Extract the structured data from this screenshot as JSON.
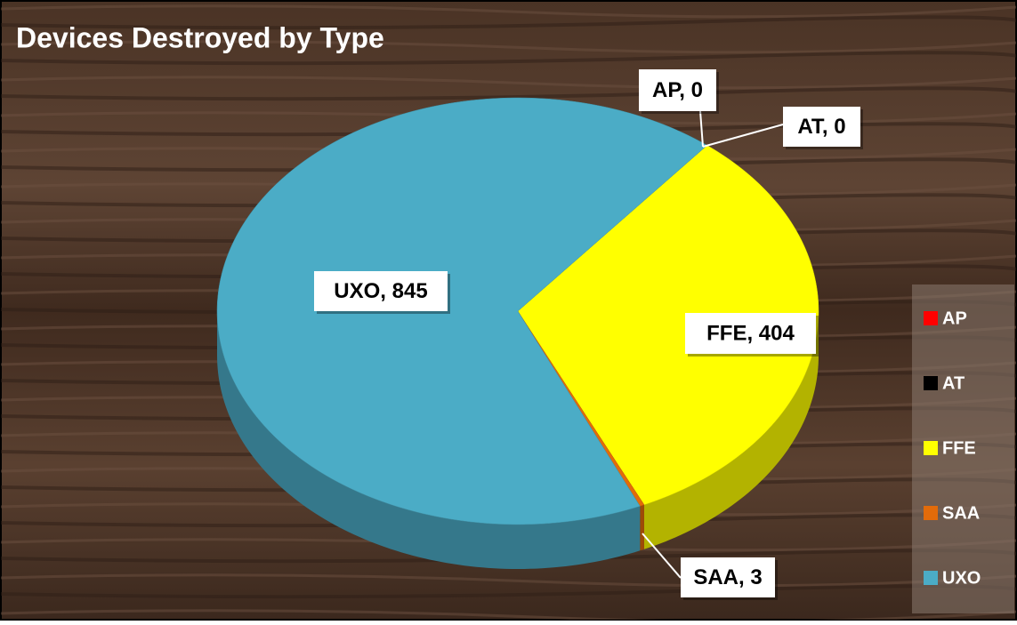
{
  "chart_data": {
    "type": "pie3d",
    "title": "Devices Destroyed by Type",
    "categories": [
      "AP",
      "AT",
      "FFE",
      "SAA",
      "UXO"
    ],
    "values": [
      0,
      0,
      404,
      3,
      845
    ],
    "value_labels": [
      "AP, 0",
      "AT, 0",
      "FFE, 404",
      "SAA, 3",
      "UXO, 845"
    ],
    "colors": [
      "#ff0000",
      "#000000",
      "#ffff00",
      "#e26b0a",
      "#4bacc6"
    ],
    "legend": "right"
  }
}
